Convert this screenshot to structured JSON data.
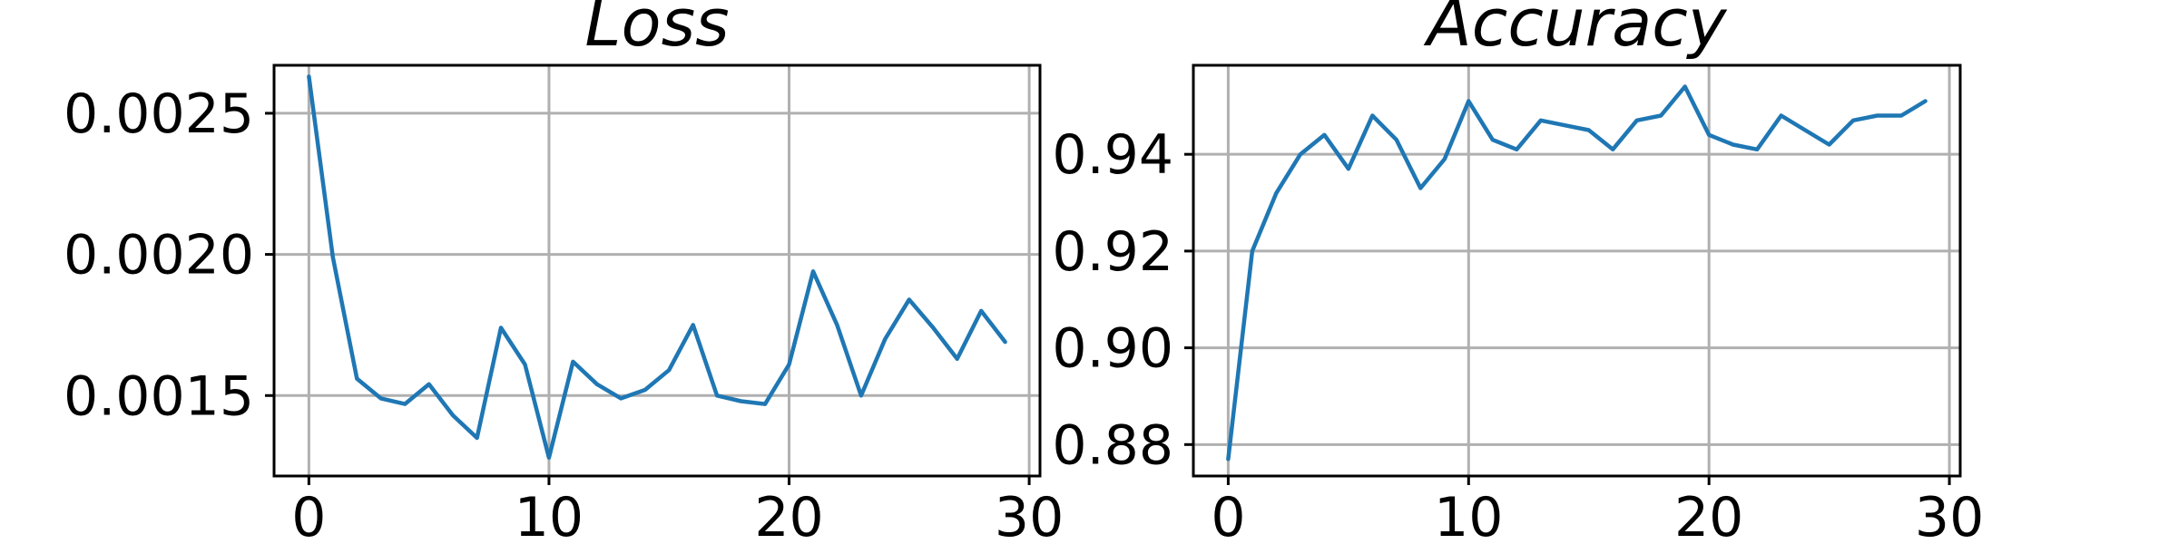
{
  "chart_data": [
    {
      "type": "line",
      "title": "Loss",
      "xlabel": "",
      "ylabel": "",
      "xlim": [
        -1.45,
        30.45
      ],
      "ylim": [
        0.001215,
        0.00267
      ],
      "xticks": [
        0,
        10,
        20,
        30
      ],
      "xtick_labels": [
        "0",
        "10",
        "20",
        "30"
      ],
      "yticks": [
        0.0015,
        0.002,
        0.0025
      ],
      "ytick_labels": [
        "0.0015",
        "0.0020",
        "0.0025"
      ],
      "grid": true,
      "color": "#1f77b4",
      "series": [
        {
          "x": [
            0,
            1,
            2,
            3,
            4,
            5,
            6,
            7,
            8,
            9,
            10,
            11,
            12,
            13,
            14,
            15,
            16,
            17,
            18,
            19,
            20,
            21,
            22,
            23,
            24,
            25,
            26,
            27,
            28,
            29
          ],
          "values": [
            0.00263,
            0.00199,
            0.00156,
            0.00149,
            0.00147,
            0.00154,
            0.00143,
            0.00135,
            0.00174,
            0.00161,
            0.00128,
            0.00162,
            0.00154,
            0.00149,
            0.00152,
            0.00159,
            0.00175,
            0.0015,
            0.00148,
            0.00147,
            0.00161,
            0.00194,
            0.00175,
            0.0015,
            0.0017,
            0.00184,
            0.00174,
            0.00163,
            0.0018,
            0.00169
          ]
        }
      ]
    },
    {
      "type": "line",
      "title": "Accuracy",
      "xlabel": "",
      "ylabel": "",
      "xlim": [
        -1.45,
        30.45
      ],
      "ylim": [
        0.8735,
        0.9584
      ],
      "xticks": [
        0,
        10,
        20,
        30
      ],
      "xtick_labels": [
        "0",
        "10",
        "20",
        "30"
      ],
      "yticks": [
        0.88,
        0.9,
        0.92,
        0.94
      ],
      "ytick_labels": [
        "0.88",
        "0.90",
        "0.92",
        "0.94"
      ],
      "grid": true,
      "color": "#1f77b4",
      "series": [
        {
          "x": [
            0,
            1,
            2,
            3,
            4,
            5,
            6,
            7,
            8,
            9,
            10,
            11,
            12,
            13,
            14,
            15,
            16,
            17,
            18,
            19,
            20,
            21,
            22,
            23,
            24,
            25,
            26,
            27,
            28,
            29
          ],
          "values": [
            0.877,
            0.92,
            0.932,
            0.94,
            0.944,
            0.937,
            0.948,
            0.943,
            0.933,
            0.939,
            0.951,
            0.943,
            0.941,
            0.947,
            0.946,
            0.945,
            0.941,
            0.947,
            0.948,
            0.954,
            0.944,
            0.942,
            0.941,
            0.948,
            0.945,
            0.942,
            0.947,
            0.948,
            0.948,
            0.951
          ]
        }
      ]
    }
  ]
}
